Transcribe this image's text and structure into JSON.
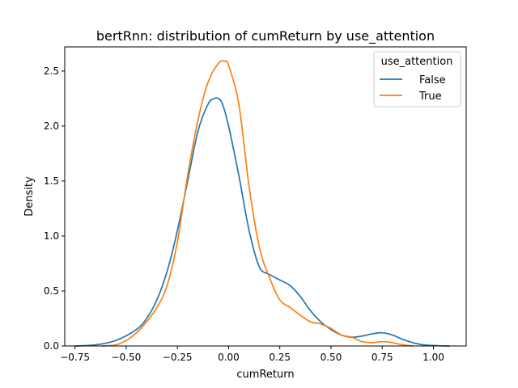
{
  "chart_data": {
    "type": "line",
    "title": "bertRnn: distribution of cumReturn by use_attention",
    "xlabel": "cumReturn",
    "ylabel": "Density",
    "xlim": [
      -0.8,
      1.16
    ],
    "ylim": [
      0,
      2.72
    ],
    "xticks": [
      "−0.75",
      "−0.50",
      "−0.25",
      "0.00",
      "0.25",
      "0.50",
      "0.75",
      "1.00"
    ],
    "xtick_values": [
      -0.75,
      -0.5,
      -0.25,
      0.0,
      0.25,
      0.5,
      0.75,
      1.0
    ],
    "yticks": [
      "0.0",
      "0.5",
      "1.0",
      "1.5",
      "2.0",
      "2.5"
    ],
    "ytick_values": [
      0.0,
      0.5,
      1.0,
      1.5,
      2.0,
      2.5
    ],
    "grid": false,
    "legend": {
      "title": "use_attention",
      "placement": "top-right"
    },
    "series": [
      {
        "name": "False",
        "color": "#1f77b4",
        "x": [
          -0.75,
          -0.65,
          -0.55,
          -0.45,
          -0.4,
          -0.35,
          -0.3,
          -0.25,
          -0.2,
          -0.15,
          -0.1,
          -0.07,
          -0.05,
          -0.03,
          0.0,
          0.05,
          0.1,
          0.15,
          0.2,
          0.25,
          0.3,
          0.35,
          0.4,
          0.45,
          0.5,
          0.55,
          0.6,
          0.65,
          0.7,
          0.75,
          0.8,
          0.85,
          0.9,
          0.95,
          1.0,
          1.05,
          1.08
        ],
        "y": [
          0.0,
          0.01,
          0.05,
          0.15,
          0.25,
          0.42,
          0.68,
          1.05,
          1.5,
          1.95,
          2.2,
          2.25,
          2.25,
          2.2,
          2.0,
          1.55,
          1.05,
          0.72,
          0.65,
          0.6,
          0.55,
          0.45,
          0.32,
          0.22,
          0.15,
          0.1,
          0.08,
          0.09,
          0.11,
          0.12,
          0.1,
          0.06,
          0.03,
          0.01,
          0.005,
          0.0,
          0.0
        ]
      },
      {
        "name": "True",
        "color": "#ff7f0e",
        "x": [
          -0.62,
          -0.55,
          -0.5,
          -0.45,
          -0.4,
          -0.35,
          -0.3,
          -0.25,
          -0.2,
          -0.15,
          -0.1,
          -0.05,
          -0.02,
          0.0,
          0.05,
          0.1,
          0.15,
          0.2,
          0.25,
          0.3,
          0.35,
          0.4,
          0.45,
          0.5,
          0.55,
          0.6,
          0.65,
          0.7,
          0.75,
          0.8,
          0.85,
          0.9
        ],
        "y": [
          0.0,
          0.01,
          0.05,
          0.12,
          0.22,
          0.35,
          0.55,
          0.95,
          1.55,
          2.05,
          2.4,
          2.57,
          2.59,
          2.55,
          2.2,
          1.45,
          0.9,
          0.62,
          0.42,
          0.35,
          0.28,
          0.22,
          0.2,
          0.16,
          0.1,
          0.08,
          0.04,
          0.03,
          0.04,
          0.03,
          0.01,
          0.0
        ]
      }
    ]
  }
}
